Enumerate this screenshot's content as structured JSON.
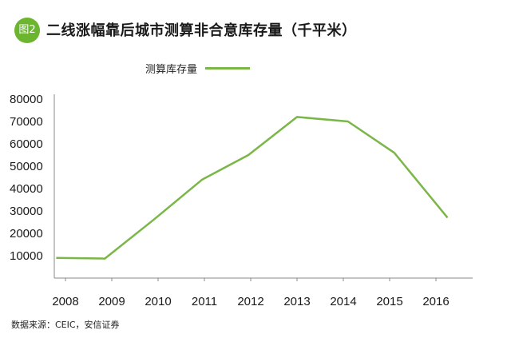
{
  "figure": {
    "badge": "图2",
    "title": "二线涨幅靠后城市测算非合意库存量（千平米）",
    "source": "数据来源：CEIC，安信证券"
  },
  "colors": {
    "series_line": "#7ab648",
    "badge": "#6bb52f",
    "axis": "#888888"
  },
  "chart_data": {
    "type": "line",
    "x_labels": [
      "2008",
      "2009",
      "2010",
      "2011",
      "2012",
      "2013",
      "2014",
      "2015",
      "2016"
    ],
    "y_ticks": [
      10000,
      20000,
      30000,
      40000,
      50000,
      60000,
      70000,
      80000
    ],
    "ylim": [
      0,
      80000
    ],
    "legend_position": "top",
    "grid": false,
    "series": [
      {
        "name": "测算库存量",
        "points": [
          {
            "x": 2007.8,
            "y": 9000
          },
          {
            "x": 2008.85,
            "y": 8700
          },
          {
            "x": 2009.9,
            "y": 26000
          },
          {
            "x": 2010.95,
            "y": 44000
          },
          {
            "x": 2011.95,
            "y": 55000
          },
          {
            "x": 2013.0,
            "y": 72000
          },
          {
            "x": 2014.1,
            "y": 70000
          },
          {
            "x": 2015.1,
            "y": 56000
          },
          {
            "x": 2016.25,
            "y": 27000
          }
        ]
      }
    ]
  }
}
